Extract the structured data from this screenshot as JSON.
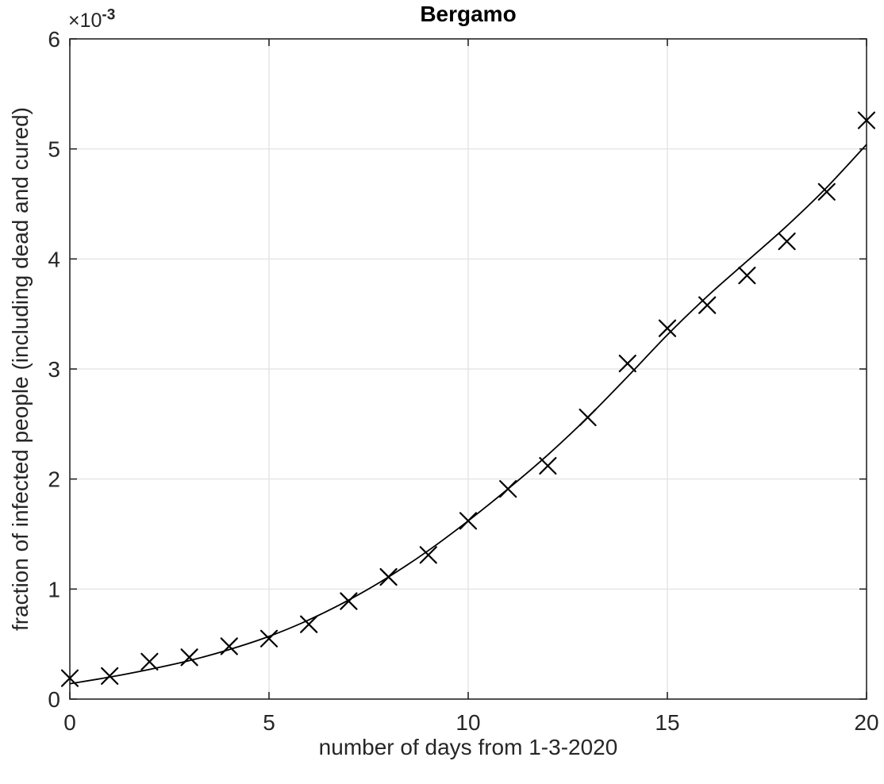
{
  "figure": {
    "title": "Bergamo",
    "xlabel": "number of days from 1-3-2020",
    "ylabel": "fraction of infected people (including dead and cured)",
    "y_exponent": {
      "base": "×10",
      "power": "-3"
    }
  },
  "colors": {
    "background": "#ffffff",
    "axis": "#262626",
    "grid": "#e0e0e0",
    "data": "#000000",
    "title": "#000000"
  },
  "chart_data": {
    "type": "scatter",
    "title": "Bergamo",
    "xlabel": "number of days from 1-3-2020",
    "ylabel": "fraction of infected people (including dead and cured)",
    "grid": true,
    "legend": false,
    "xlim": [
      0,
      20
    ],
    "ylim_displayed": [
      0,
      6
    ],
    "y_unit_multiplier": 0.001,
    "y_multiplier_label": "×10⁻³",
    "x_ticks": [
      0,
      5,
      10,
      15,
      20
    ],
    "y_ticks": [
      0,
      1,
      2,
      3,
      4,
      5,
      6
    ],
    "x": [
      0,
      1,
      2,
      3,
      4,
      5,
      6,
      7,
      8,
      9,
      10,
      11,
      12,
      13,
      14,
      15,
      16,
      17,
      18,
      19,
      20
    ],
    "series": [
      {
        "name": "data",
        "type": "scatter",
        "marker": "x",
        "color": "#000000",
        "values": [
          0.19,
          0.21,
          0.34,
          0.38,
          0.48,
          0.55,
          0.68,
          0.89,
          1.11,
          1.31,
          1.62,
          1.91,
          2.12,
          2.56,
          3.05,
          3.37,
          3.58,
          3.85,
          4.16,
          4.61,
          5.26
        ]
      },
      {
        "name": "fit",
        "type": "line",
        "marker": "none",
        "color": "#000000",
        "values": [
          0.14,
          0.2,
          0.27,
          0.35,
          0.45,
          0.57,
          0.72,
          0.9,
          1.11,
          1.35,
          1.62,
          1.91,
          2.22,
          2.56,
          2.93,
          3.31,
          3.66,
          3.98,
          4.3,
          4.65,
          5.04
        ]
      }
    ]
  }
}
